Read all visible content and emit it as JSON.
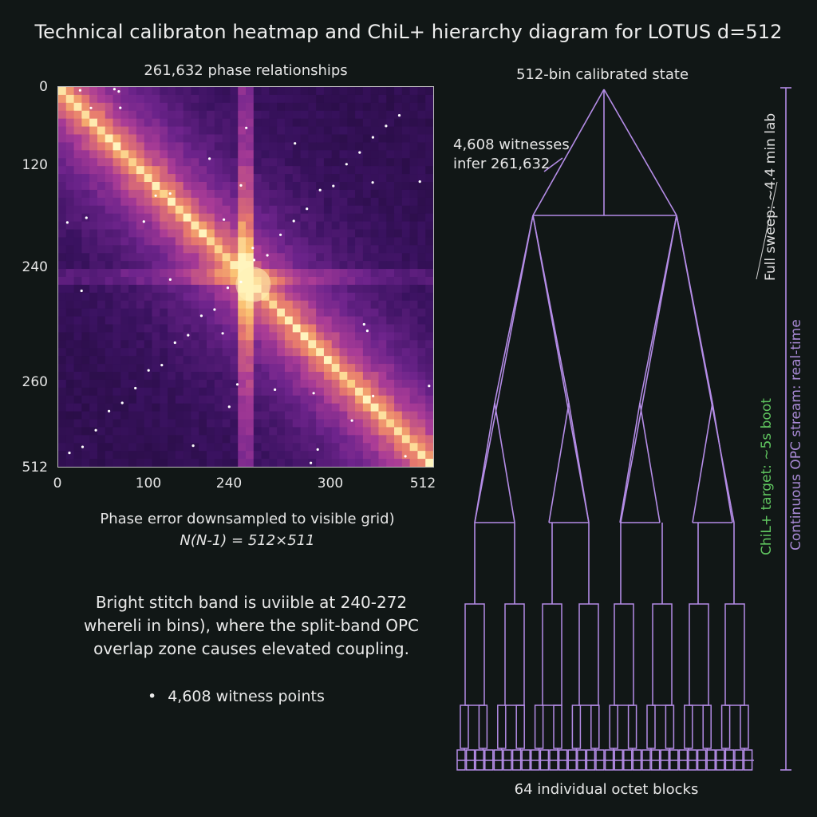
{
  "title": "Technical calibraton heatmap and ChiL+ hierarchy diagram for LOTUS d=512",
  "heatmap": {
    "title": "261,632 phase relationships",
    "y_ticks": [
      "0",
      "120",
      "240",
      "260",
      "512"
    ],
    "x_ticks": [
      "0",
      "100",
      "240",
      "300",
      "512"
    ],
    "caption_line1": "Phase error downsampled to visible grid)",
    "caption_line2": "N(N-1) = 512×511",
    "colormap": "magma",
    "stitch_band": [
      240,
      272
    ]
  },
  "note": {
    "line1": "Bright stitch band is uviible at 240-272",
    "line2": "whereli in bins), where the split-band OPC",
    "line3": "overlap zone causes elevated coupling."
  },
  "bullet": "4,608 witness points",
  "tree": {
    "top_label": "512-bin calibrated state",
    "witness_line1": "4,608 witnesses",
    "witness_line2": "infer 261,632",
    "bottom_label": "64 individual octet blocks",
    "sweep_label": "Full sweep: ~4.4 min lab",
    "boot_label": "ChiL+ target: ~5s boot",
    "opc_label": "Continuous OPC stream: real-time",
    "line_color": "#b48ce6",
    "boot_color": "#5fc45f"
  }
}
